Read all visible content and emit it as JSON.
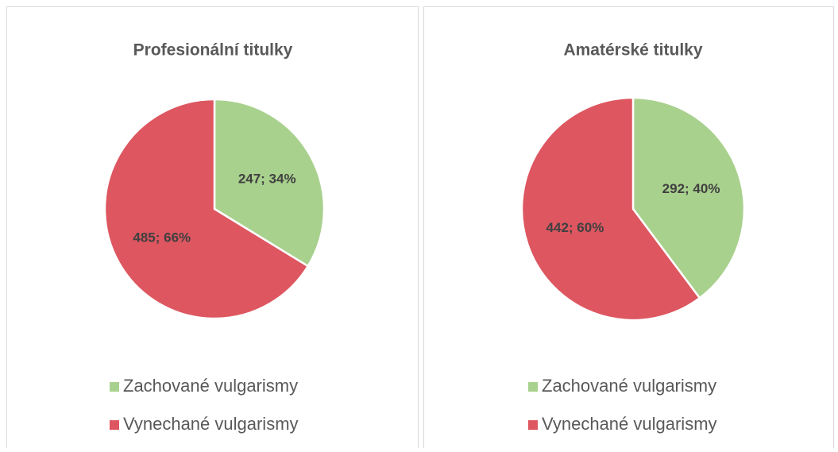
{
  "chart_data": [
    {
      "type": "pie",
      "title": "Profesionální titulky",
      "categories": [
        "Zachované vulgarismy",
        "Vynechané vulgarismy"
      ],
      "values": [
        247,
        485
      ],
      "value_labels": [
        "247; 34%",
        "485; 66%"
      ],
      "colors": [
        "#a9d18e",
        "#dd5660"
      ]
    },
    {
      "type": "pie",
      "title": "Amatérské titulky",
      "categories": [
        "Zachované vulgarismy",
        "Vynechané vulgarismy"
      ],
      "values": [
        292,
        442
      ],
      "value_labels": [
        "292; 40%",
        "442; 60%"
      ],
      "colors": [
        "#a9d18e",
        "#dd5660"
      ]
    }
  ]
}
